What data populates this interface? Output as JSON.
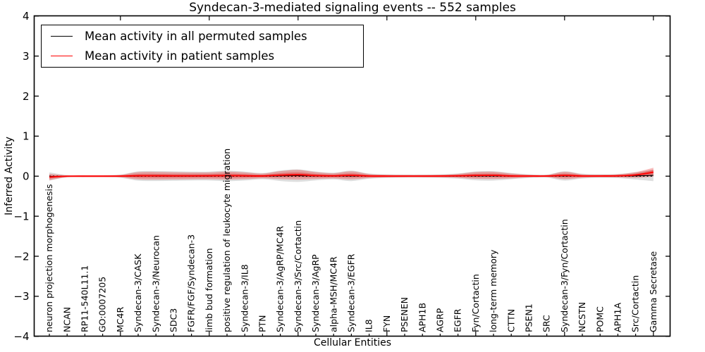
{
  "figure": {
    "background": "#ffffff"
  },
  "chart_data": {
    "type": "line",
    "title": "Syndecan-3-mediated signaling events -- 552 samples",
    "xlabel": "Cellular Entities",
    "ylabel": "Inferred Activity",
    "ylim": [
      -4,
      4
    ],
    "yticks": [
      4,
      3,
      2,
      1,
      0,
      -1,
      -2,
      -3,
      -4
    ],
    "grid": false,
    "legend_position": "upper left",
    "zero_baseline": {
      "value": 0,
      "style": "dotted",
      "color": "#000000"
    },
    "categories": [
      "neuron projection morphogenesis",
      "NCAN",
      "RP11-540L11.1",
      "GO:0007205",
      "MC4R",
      "Syndecan-3/CASK",
      "Syndecan-3/Neurocan",
      "SDC3",
      "FGFR/FGF/Syndecan-3",
      "limb bud formation",
      "positive regulation of leukocyte migration",
      "Syndecan-3/IL8",
      "PTN",
      "Syndecan-3/AgRP/MC4R",
      "Syndecan-3/Src/Cortactin",
      "Syndecan-3/AgRP",
      "alpha-MSH/MC4R",
      "Syndecan-3/EGFR",
      "IL8",
      "FYN",
      "PSENEN",
      "APH1B",
      "AGRP",
      "EGFR",
      "Fyn/Cortactin",
      "long-term memory",
      "CTTN",
      "PSEN1",
      "SRC",
      "Syndecan-3/Fyn/Cortactin",
      "NCSTN",
      "POMC",
      "APH1A",
      "Src/Cortactin",
      "Gamma Secretase"
    ],
    "series": [
      {
        "name": "Mean activity in all permuted samples",
        "color": "#000000",
        "band_color": "#000000",
        "band_opacity": 0.13,
        "values": [
          -0.008,
          0,
          0,
          0,
          0,
          0.004,
          0.004,
          0.003,
          0.003,
          0.004,
          0.006,
          0.004,
          0.002,
          0.01,
          0.014,
          0.006,
          0.003,
          0.008,
          0.002,
          0.001,
          0.001,
          0.001,
          0.001,
          0.003,
          0.007,
          0.008,
          0.002,
          0.001,
          0.001,
          0.007,
          0.002,
          0.002,
          0.003,
          0.008,
          0.02
        ],
        "band_half_width": [
          0.104,
          0.029,
          0.023,
          0.023,
          0.039,
          0.117,
          0.124,
          0.117,
          0.111,
          0.111,
          0.13,
          0.111,
          0.078,
          0.13,
          0.156,
          0.111,
          0.085,
          0.13,
          0.065,
          0.046,
          0.039,
          0.039,
          0.046,
          0.065,
          0.111,
          0.117,
          0.078,
          0.046,
          0.039,
          0.117,
          0.059,
          0.046,
          0.052,
          0.091,
          0.143
        ]
      },
      {
        "name": "Mean activity in patient samples",
        "color": "#ff0000",
        "band_color": "#e60000",
        "band_opacity": 0.27,
        "values": [
          -0.02,
          -0.002,
          0,
          0,
          0.002,
          0.01,
          0.01,
          0.008,
          0.008,
          0.01,
          0.015,
          0.01,
          0.005,
          0.025,
          0.035,
          0.015,
          0.008,
          0.02,
          0.004,
          0.002,
          0.002,
          0.002,
          0.003,
          0.008,
          0.018,
          0.02,
          0.005,
          0.003,
          0.003,
          0.018,
          0.004,
          0.004,
          0.008,
          0.03,
          0.1
        ],
        "band_half_width": [
          0.08,
          0.022,
          0.018,
          0.018,
          0.03,
          0.09,
          0.095,
          0.09,
          0.085,
          0.085,
          0.1,
          0.085,
          0.06,
          0.1,
          0.12,
          0.085,
          0.065,
          0.1,
          0.05,
          0.035,
          0.03,
          0.03,
          0.035,
          0.05,
          0.085,
          0.09,
          0.06,
          0.035,
          0.03,
          0.09,
          0.045,
          0.035,
          0.04,
          0.07,
          0.11
        ]
      }
    ]
  }
}
